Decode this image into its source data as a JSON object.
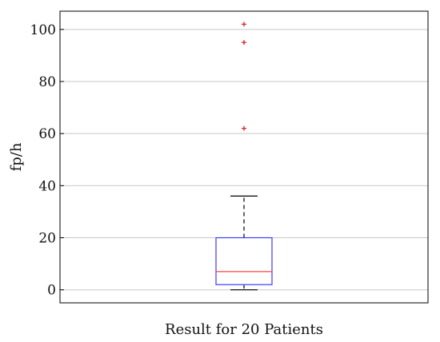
{
  "chart_data": {
    "type": "box",
    "title": "",
    "xlabel": "Result for 20 Patients",
    "ylabel": "fp/h",
    "ylim": [
      -5,
      107
    ],
    "yticks": [
      0,
      20,
      40,
      60,
      80,
      100
    ],
    "grid": true,
    "box": {
      "whisker_low": 0,
      "q1": 2,
      "median": 7,
      "q3": 20,
      "whisker_high": 36
    },
    "outliers": [
      62,
      95,
      102
    ],
    "colors": {
      "box": "#3b3bff",
      "median": "#ff4444",
      "outlier": "#dd2222",
      "whisker": "#000000",
      "grid": "#c8c8c8"
    }
  }
}
